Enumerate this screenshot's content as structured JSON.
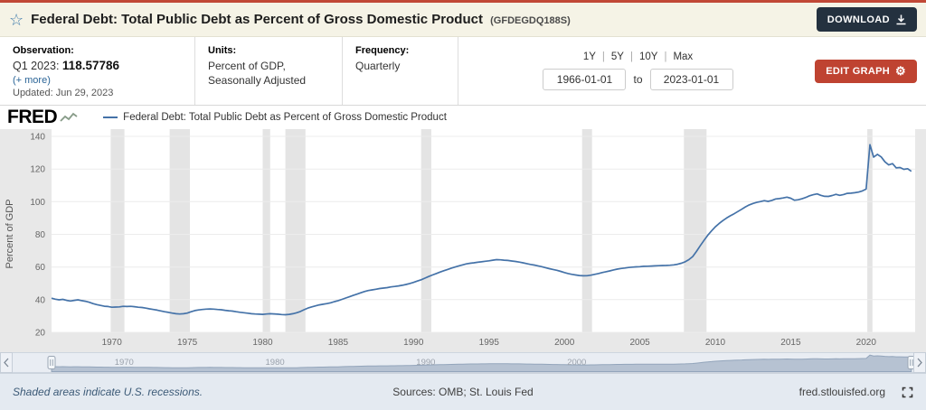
{
  "header": {
    "title": "Federal Debt: Total Public Debt as Percent of Gross Domestic Product",
    "series_id": "(GFDEGDQ188S)",
    "download_label": "DOWNLOAD"
  },
  "meta": {
    "observation_label": "Observation:",
    "observation_prefix": "Q1 2023:",
    "observation_number": "118.57786",
    "more_link": "(+ more)",
    "updated": "Updated: Jun 29, 2023",
    "units_label": "Units:",
    "units_line1": "Percent of GDP,",
    "units_line2": "Seasonally Adjusted",
    "frequency_label": "Frequency:",
    "frequency_value": "Quarterly",
    "ranges": [
      "1Y",
      "5Y",
      "10Y",
      "Max"
    ],
    "range_sep": "|",
    "date_start": "1966-01-01",
    "to_label": "to",
    "date_end": "2023-01-01",
    "edit_label": "EDIT GRAPH"
  },
  "graph": {
    "brand": "FRED",
    "legend": "Federal Debt: Total Public Debt as Percent of Gross Domestic Product"
  },
  "navigator": {
    "labels": [
      "1970",
      "1980",
      "1990",
      "2000"
    ]
  },
  "footer": {
    "note": "Shaded areas indicate U.S. recessions.",
    "sources": "Sources: OMB; St. Louis Fed",
    "site": "fred.stlouisfed.org"
  },
  "chart_data": {
    "type": "line",
    "title": "Federal Debt: Total Public Debt as Percent of Gross Domestic Product",
    "xlabel": "",
    "ylabel": "Percent of GDP",
    "xlim": [
      1966,
      2023.25
    ],
    "ylim": [
      20,
      140
    ],
    "yticks": [
      20,
      40,
      60,
      80,
      100,
      120,
      140
    ],
    "xticks": [
      1970,
      1975,
      1980,
      1985,
      1990,
      1995,
      2000,
      2005,
      2010,
      2015,
      2020
    ],
    "line_color": "#4472a8",
    "recession_color": "#e4e4e4",
    "grid": "horizontal",
    "legend_position": "top",
    "recessions": [
      [
        1969.92,
        1970.83
      ],
      [
        1973.83,
        1975.17
      ],
      [
        1980.0,
        1980.5
      ],
      [
        1981.5,
        1982.83
      ],
      [
        1990.5,
        1991.17
      ],
      [
        2001.17,
        2001.83
      ],
      [
        2007.92,
        2009.42
      ],
      [
        2020.08,
        2020.42
      ]
    ],
    "points": [
      [
        1966,
        40.9
      ],
      [
        1966.25,
        40.3
      ],
      [
        1966.5,
        39.9
      ],
      [
        1966.75,
        40.2
      ],
      [
        1967,
        39.6
      ],
      [
        1967.25,
        39.2
      ],
      [
        1967.5,
        39.6
      ],
      [
        1967.75,
        39.9
      ],
      [
        1968,
        39.4
      ],
      [
        1968.25,
        39.0
      ],
      [
        1968.5,
        38.4
      ],
      [
        1968.75,
        37.6
      ],
      [
        1969,
        37.0
      ],
      [
        1969.25,
        36.5
      ],
      [
        1969.5,
        36.0
      ],
      [
        1969.75,
        35.8
      ],
      [
        1970,
        35.4
      ],
      [
        1970.25,
        35.5
      ],
      [
        1970.5,
        35.6
      ],
      [
        1970.75,
        35.9
      ],
      [
        1971,
        35.8
      ],
      [
        1971.25,
        35.9
      ],
      [
        1971.5,
        35.7
      ],
      [
        1971.75,
        35.4
      ],
      [
        1972,
        35.2
      ],
      [
        1972.25,
        34.8
      ],
      [
        1972.5,
        34.4
      ],
      [
        1972.75,
        34.0
      ],
      [
        1973,
        33.6
      ],
      [
        1973.25,
        33.1
      ],
      [
        1973.5,
        32.6
      ],
      [
        1973.75,
        32.2
      ],
      [
        1974,
        31.8
      ],
      [
        1974.25,
        31.4
      ],
      [
        1974.5,
        31.2
      ],
      [
        1974.75,
        31.4
      ],
      [
        1975,
        31.8
      ],
      [
        1975.25,
        32.6
      ],
      [
        1975.5,
        33.3
      ],
      [
        1975.75,
        33.7
      ],
      [
        1976,
        34.0
      ],
      [
        1976.25,
        34.2
      ],
      [
        1976.5,
        34.3
      ],
      [
        1976.75,
        34.2
      ],
      [
        1977,
        34.0
      ],
      [
        1977.25,
        33.8
      ],
      [
        1977.5,
        33.5
      ],
      [
        1977.75,
        33.2
      ],
      [
        1978,
        33.0
      ],
      [
        1978.25,
        32.6
      ],
      [
        1978.5,
        32.3
      ],
      [
        1978.75,
        32.0
      ],
      [
        1979,
        31.7
      ],
      [
        1979.25,
        31.4
      ],
      [
        1979.5,
        31.2
      ],
      [
        1979.75,
        31.1
      ],
      [
        1980,
        31.0
      ],
      [
        1980.25,
        31.2
      ],
      [
        1980.5,
        31.4
      ],
      [
        1980.75,
        31.3
      ],
      [
        1981,
        31.1
      ],
      [
        1981.25,
        30.9
      ],
      [
        1981.5,
        30.8
      ],
      [
        1981.75,
        31.0
      ],
      [
        1982,
        31.4
      ],
      [
        1982.25,
        32.0
      ],
      [
        1982.5,
        32.8
      ],
      [
        1982.75,
        33.9
      ],
      [
        1983,
        34.9
      ],
      [
        1983.25,
        35.6
      ],
      [
        1983.5,
        36.2
      ],
      [
        1983.75,
        36.8
      ],
      [
        1984,
        37.2
      ],
      [
        1984.25,
        37.6
      ],
      [
        1984.5,
        38.1
      ],
      [
        1984.75,
        38.8
      ],
      [
        1985,
        39.4
      ],
      [
        1985.25,
        40.2
      ],
      [
        1985.5,
        41.0
      ],
      [
        1985.75,
        41.8
      ],
      [
        1986,
        42.6
      ],
      [
        1986.25,
        43.4
      ],
      [
        1986.5,
        44.2
      ],
      [
        1986.75,
        45.0
      ],
      [
        1987,
        45.6
      ],
      [
        1987.25,
        46.0
      ],
      [
        1987.5,
        46.4
      ],
      [
        1987.75,
        46.8
      ],
      [
        1988,
        47.1
      ],
      [
        1988.25,
        47.4
      ],
      [
        1988.5,
        47.8
      ],
      [
        1988.75,
        48.1
      ],
      [
        1989,
        48.4
      ],
      [
        1989.25,
        48.8
      ],
      [
        1989.5,
        49.3
      ],
      [
        1989.75,
        49.9
      ],
      [
        1990,
        50.6
      ],
      [
        1990.25,
        51.4
      ],
      [
        1990.5,
        52.2
      ],
      [
        1990.75,
        53.2
      ],
      [
        1991,
        54.2
      ],
      [
        1991.25,
        55.1
      ],
      [
        1991.5,
        56.0
      ],
      [
        1991.75,
        56.9
      ],
      [
        1992,
        57.7
      ],
      [
        1992.25,
        58.5
      ],
      [
        1992.5,
        59.3
      ],
      [
        1992.75,
        60.0
      ],
      [
        1993,
        60.7
      ],
      [
        1993.25,
        61.3
      ],
      [
        1993.5,
        61.9
      ],
      [
        1993.75,
        62.3
      ],
      [
        1994,
        62.6
      ],
      [
        1994.25,
        62.9
      ],
      [
        1994.5,
        63.2
      ],
      [
        1994.75,
        63.5
      ],
      [
        1995,
        63.8
      ],
      [
        1995.25,
        64.2
      ],
      [
        1995.5,
        64.5
      ],
      [
        1995.75,
        64.4
      ],
      [
        1996,
        64.2
      ],
      [
        1996.25,
        64.0
      ],
      [
        1996.5,
        63.7
      ],
      [
        1996.75,
        63.4
      ],
      [
        1997,
        63.0
      ],
      [
        1997.25,
        62.6
      ],
      [
        1997.5,
        62.1
      ],
      [
        1997.75,
        61.6
      ],
      [
        1998,
        61.2
      ],
      [
        1998.25,
        60.7
      ],
      [
        1998.5,
        60.2
      ],
      [
        1998.75,
        59.6
      ],
      [
        1999,
        59.0
      ],
      [
        1999.25,
        58.5
      ],
      [
        1999.5,
        58.0
      ],
      [
        1999.75,
        57.3
      ],
      [
        2000,
        56.6
      ],
      [
        2000.25,
        56.0
      ],
      [
        2000.5,
        55.5
      ],
      [
        2000.75,
        55.1
      ],
      [
        2001,
        54.8
      ],
      [
        2001.25,
        54.6
      ],
      [
        2001.5,
        54.7
      ],
      [
        2001.75,
        55.0
      ],
      [
        2002,
        55.5
      ],
      [
        2002.25,
        56.0
      ],
      [
        2002.5,
        56.6
      ],
      [
        2002.75,
        57.1
      ],
      [
        2003,
        57.6
      ],
      [
        2003.25,
        58.2
      ],
      [
        2003.5,
        58.7
      ],
      [
        2003.75,
        59.1
      ],
      [
        2004,
        59.4
      ],
      [
        2004.25,
        59.7
      ],
      [
        2004.5,
        59.9
      ],
      [
        2004.75,
        60.1
      ],
      [
        2005,
        60.2
      ],
      [
        2005.25,
        60.4
      ],
      [
        2005.5,
        60.5
      ],
      [
        2005.75,
        60.6
      ],
      [
        2006,
        60.7
      ],
      [
        2006.25,
        60.8
      ],
      [
        2006.5,
        60.9
      ],
      [
        2006.75,
        61.0
      ],
      [
        2007,
        61.1
      ],
      [
        2007.25,
        61.3
      ],
      [
        2007.5,
        61.7
      ],
      [
        2007.75,
        62.3
      ],
      [
        2008,
        63.2
      ],
      [
        2008.25,
        64.5
      ],
      [
        2008.5,
        66.4
      ],
      [
        2008.75,
        69.5
      ],
      [
        2009,
        73.0
      ],
      [
        2009.25,
        76.3
      ],
      [
        2009.5,
        79.4
      ],
      [
        2009.75,
        82.1
      ],
      [
        2010,
        84.6
      ],
      [
        2010.25,
        86.6
      ],
      [
        2010.5,
        88.4
      ],
      [
        2010.75,
        90.0
      ],
      [
        2011,
        91.4
      ],
      [
        2011.25,
        92.6
      ],
      [
        2011.5,
        94.0
      ],
      [
        2011.75,
        95.4
      ],
      [
        2012,
        96.8
      ],
      [
        2012.25,
        98.0
      ],
      [
        2012.5,
        98.9
      ],
      [
        2012.75,
        99.6
      ],
      [
        2013,
        100.1
      ],
      [
        2013.25,
        100.6
      ],
      [
        2013.5,
        100.2
      ],
      [
        2013.75,
        100.8
      ],
      [
        2014,
        101.7
      ],
      [
        2014.25,
        101.9
      ],
      [
        2014.5,
        102.3
      ],
      [
        2014.75,
        102.8
      ],
      [
        2015,
        102.1
      ],
      [
        2015.25,
        100.9
      ],
      [
        2015.5,
        101.2
      ],
      [
        2015.75,
        101.8
      ],
      [
        2016,
        102.6
      ],
      [
        2016.25,
        103.6
      ],
      [
        2016.5,
        104.3
      ],
      [
        2016.75,
        104.8
      ],
      [
        2017,
        103.9
      ],
      [
        2017.25,
        103.3
      ],
      [
        2017.5,
        103.2
      ],
      [
        2017.75,
        103.8
      ],
      [
        2018,
        104.5
      ],
      [
        2018.25,
        103.9
      ],
      [
        2018.5,
        104.4
      ],
      [
        2018.75,
        105.1
      ],
      [
        2019,
        105.2
      ],
      [
        2019.25,
        105.5
      ],
      [
        2019.5,
        105.9
      ],
      [
        2019.75,
        106.6
      ],
      [
        2020,
        107.7
      ],
      [
        2020.25,
        134.9
      ],
      [
        2020.5,
        127.3
      ],
      [
        2020.75,
        129.0
      ],
      [
        2021,
        127.4
      ],
      [
        2021.25,
        124.4
      ],
      [
        2021.5,
        122.5
      ],
      [
        2021.75,
        123.3
      ],
      [
        2022,
        120.7
      ],
      [
        2022.25,
        120.9
      ],
      [
        2022.5,
        119.8
      ],
      [
        2022.75,
        120.2
      ],
      [
        2023,
        118.57786
      ]
    ]
  }
}
